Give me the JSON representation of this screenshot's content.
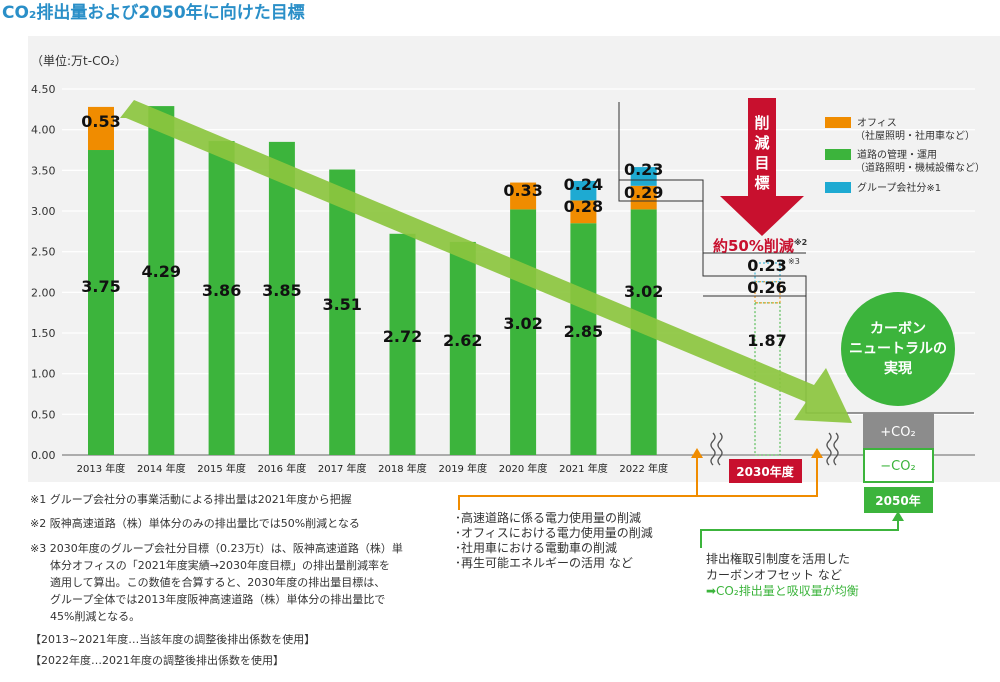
{
  "page": {
    "title": "CO₂排出量および2050年に向けた目標",
    "unit": "（単位:万t-CO₂）"
  },
  "colors": {
    "office": "#f08c00",
    "road": "#3cb43c",
    "group": "#1eaad2",
    "title_blue": "#2a8fc8",
    "red": "#c8102e",
    "light_green": "#8cc63f",
    "gray": "#8c8c8c"
  },
  "chart_data": {
    "type": "bar",
    "stacked": true,
    "categories": [
      "2013 年度",
      "2014 年度",
      "2015 年度",
      "2016 年度",
      "2017 年度",
      "2018 年度",
      "2019 年度",
      "2020 年度",
      "2021 年度",
      "2022 年度"
    ],
    "ylim": [
      0,
      4.5
    ],
    "y_ticks": [
      "0.00",
      "0.50",
      "1.00",
      "1.50",
      "2.00",
      "2.50",
      "3.00",
      "3.50",
      "4.00",
      "4.50"
    ],
    "grid": true,
    "series": [
      {
        "name": "道路の管理・運用",
        "name2": "（道路照明・機械設備など）",
        "values": [
          3.75,
          4.29,
          3.86,
          3.85,
          3.51,
          2.72,
          2.62,
          3.02,
          2.85,
          3.02
        ],
        "labels": [
          "3.75",
          "4.29",
          "3.86",
          "3.85",
          "3.51",
          "2.72",
          "2.62",
          "3.02",
          "2.85",
          "3.02"
        ]
      },
      {
        "name": "オフィス",
        "name2": "（社屋照明・社用車など）",
        "values": [
          0.53,
          0,
          0,
          0,
          0,
          0,
          0,
          0.33,
          0.28,
          0.29
        ],
        "labels": [
          "0.53",
          "",
          "",
          "",
          "",
          "",
          "",
          "0.33",
          "0.28",
          "0.29"
        ]
      },
      {
        "name": "グループ会社分※1",
        "name2": "",
        "values": [
          0,
          0,
          0,
          0,
          0,
          0,
          0,
          0,
          0.24,
          0.23
        ],
        "labels": [
          "",
          "",
          "",
          "",
          "",
          "",
          "",
          "",
          "0.24",
          "0.23"
        ]
      }
    ],
    "target_2030": {
      "label": "2030年度",
      "road": 1.87,
      "office": 0.26,
      "group": 0.23,
      "road_label": "1.87",
      "office_label": "0.26",
      "group_label": "0.23",
      "group_note": "※3"
    },
    "reduction": {
      "arrow_text": "削減目標",
      "text": "約50%削減",
      "note": "※2"
    },
    "neutral": {
      "circle": "カーボンニュートラルの実現",
      "plus": "+CO₂",
      "minus": "−CO₂",
      "year": "2050年"
    },
    "measures": [
      "･高速道路に係る電力使用量の削減",
      "･オフィスにおける電力使用量の削減",
      "･社用車における電動車の削減",
      "･再生可能エネルギーの活用 など"
    ],
    "offset": [
      "排出権取引制度を活用した",
      "カーボンオフセット など",
      "➡CO₂排出量と吸収量が均衡"
    ],
    "notes": [
      "※1 グループ会社分の事業活動による排出量は2021年度から把握",
      "※2 阪神高速道路（株）単体分のみの排出量比では50%削減となる",
      "※3 2030年度のグループ会社分目標（0.23万t）は、阪神高速道路（株）単",
      "体分オフィスの「2021年度実績→2030年度目標」の排出量削減率を",
      "適用して算出。この数値を合算すると、2030年度の排出量目標は、",
      "グループ全体では2013年度阪神高速道路（株）単体分の排出量比で",
      "45%削減となる。",
      "【2013~2021年度…当該年度の調整後排出係数を使用】",
      "【2022年度…2021年度の調整後排出係数を使用】"
    ]
  }
}
